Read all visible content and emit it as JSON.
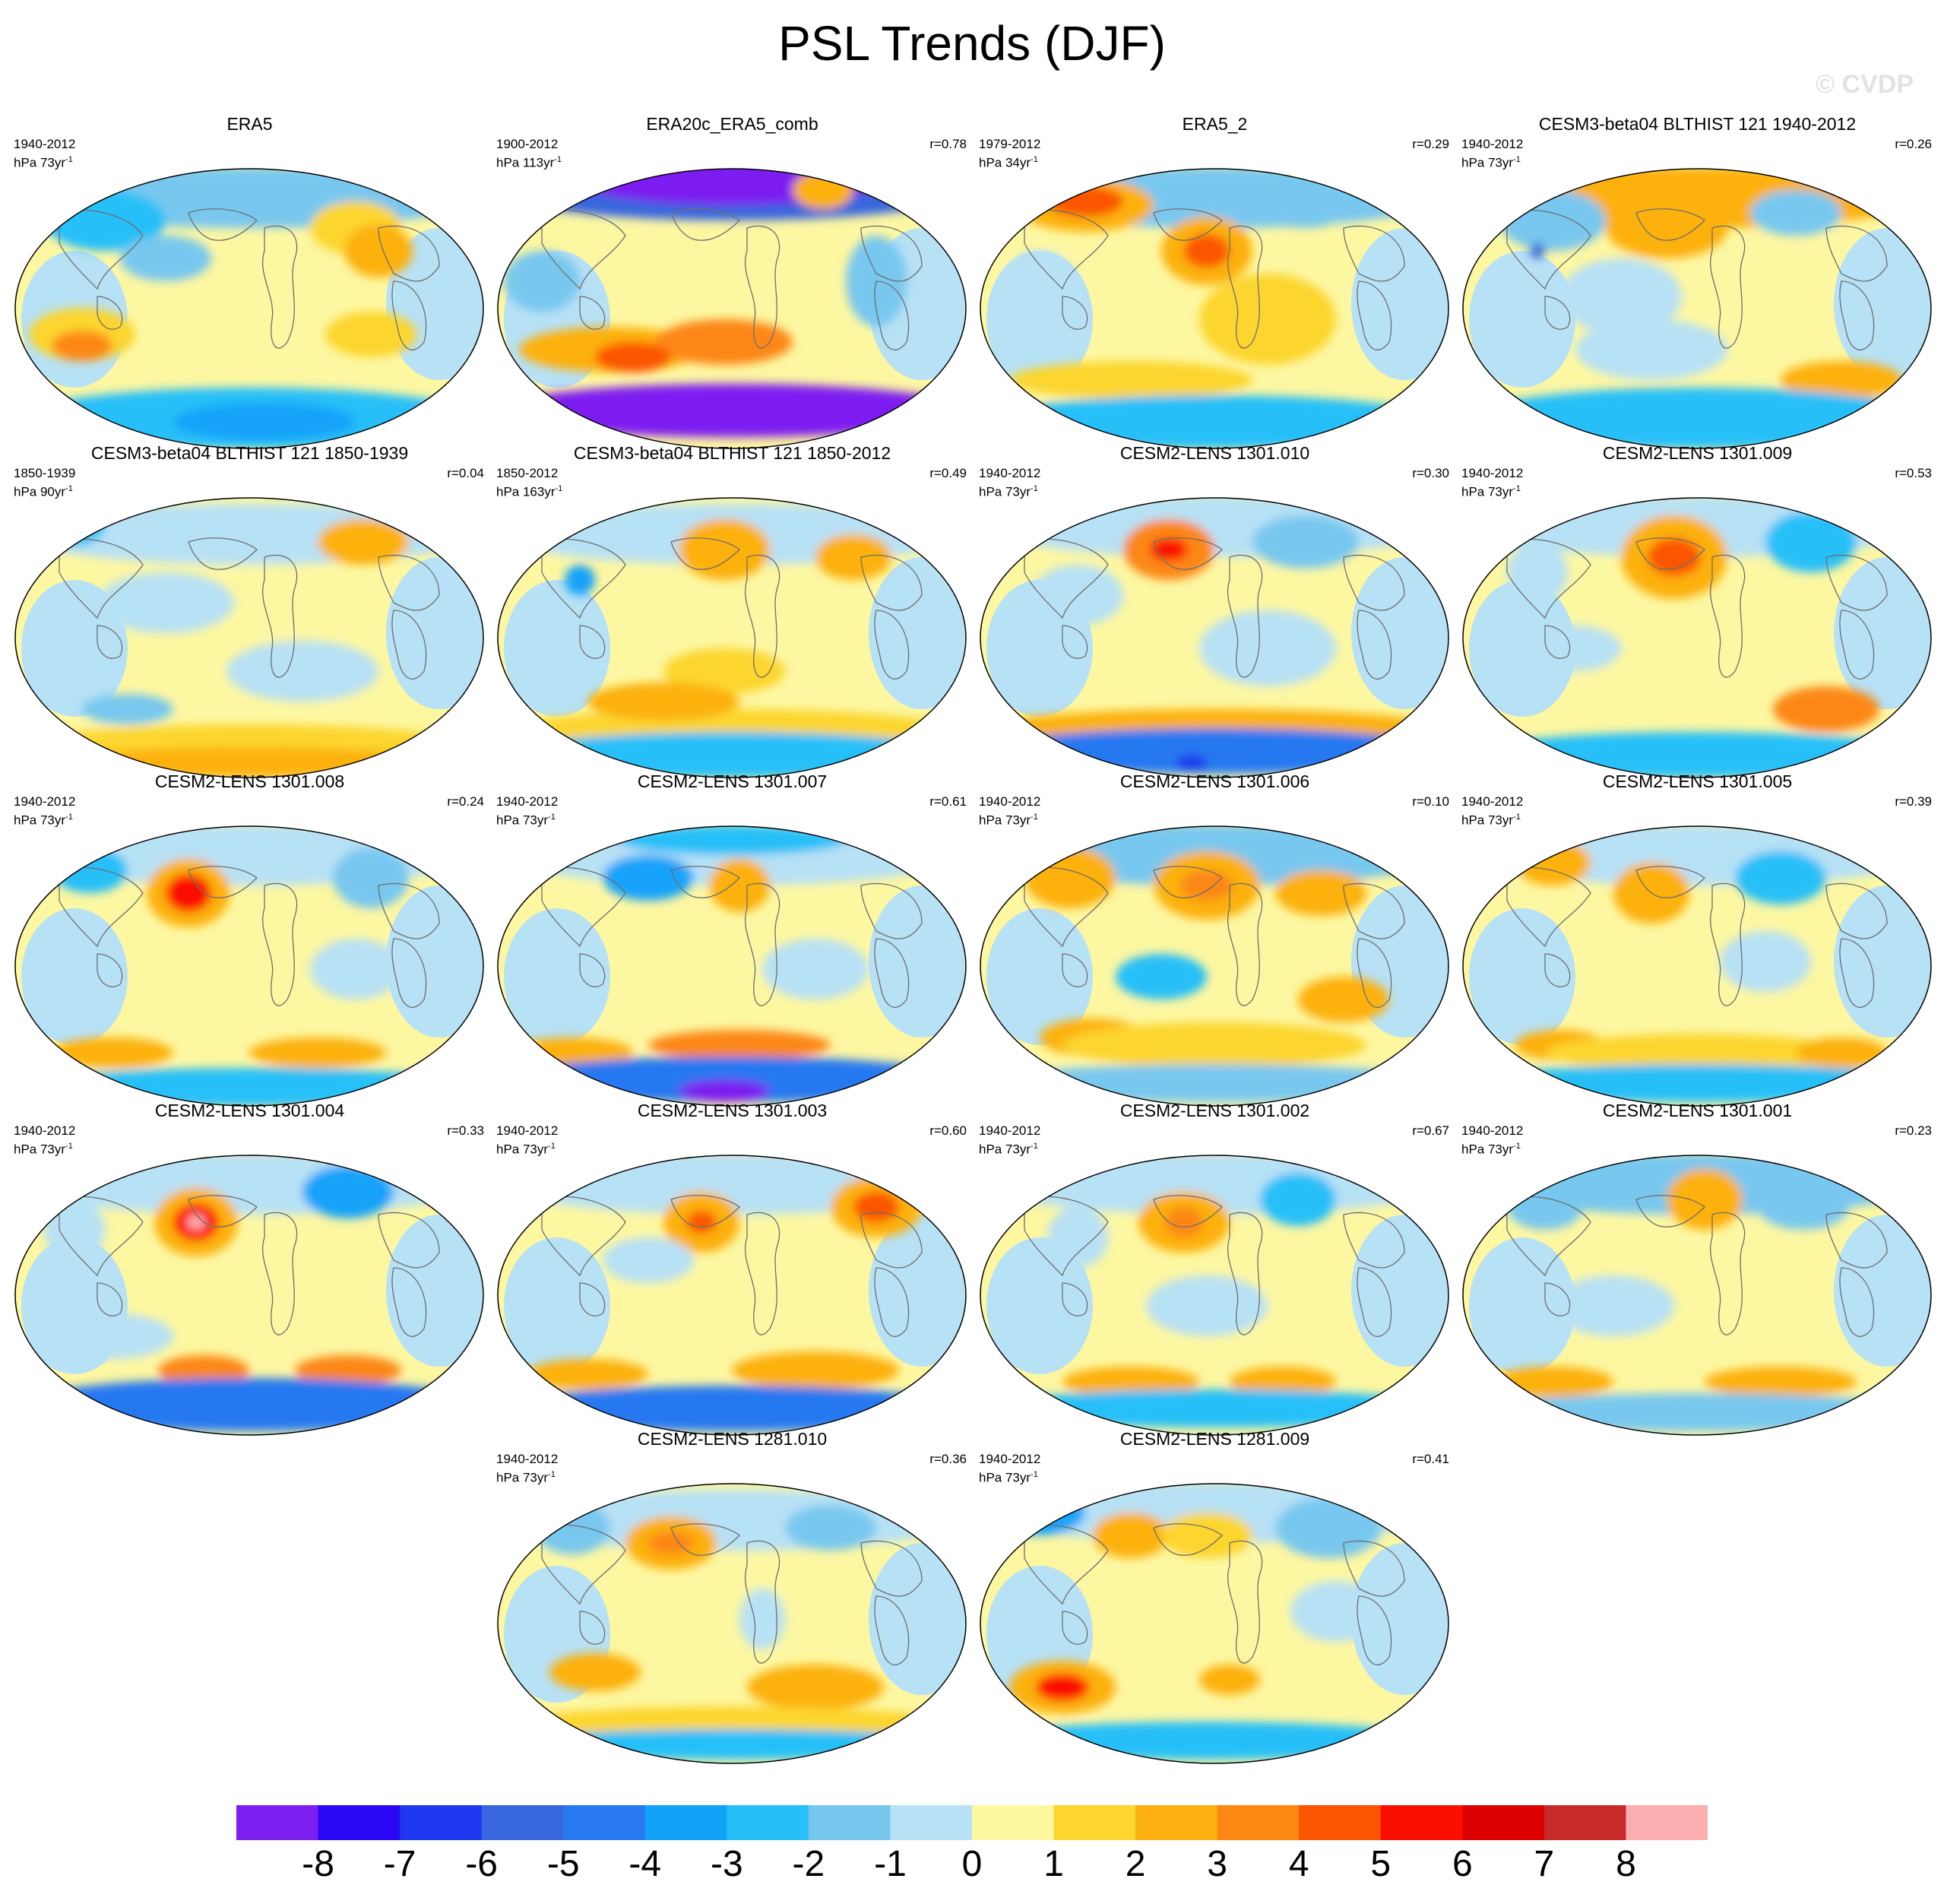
{
  "title": "PSL Trends (DJF)",
  "watermark": "© CVDP",
  "chart_data": {
    "type": "heatmap",
    "title": "PSL Trends (DJF)",
    "colorbar": {
      "labels": [
        "-8",
        "-7",
        "-6",
        "-5",
        "-4",
        "-3",
        "-2",
        "-1",
        "0",
        "1",
        "2",
        "3",
        "4",
        "5",
        "6",
        "7",
        "8"
      ],
      "colors": [
        "#7d1ff0",
        "#2a07f5",
        "#1f37ee",
        "#3866de",
        "#2778f1",
        "#12a3f9",
        "#27bff8",
        "#78c7ef",
        "#b7e1f5",
        "#fdf7a2",
        "#fcd62f",
        "#fcb111",
        "#fc8712",
        "#fb5402",
        "#fb0f01",
        "#dc0000",
        "#c82a2a",
        "#fdaeb0"
      ]
    },
    "panels": [
      {
        "title": "ERA5",
        "period": "1940-2012",
        "units": "hPa 73yr",
        "unit_exp": "-1",
        "r": ""
      },
      {
        "title": "ERA20c_ERA5_comb",
        "period": "1900-2012",
        "units": "hPa 113yr",
        "unit_exp": "-1",
        "r": "r=0.78"
      },
      {
        "title": "ERA5_2",
        "period": "1979-2012",
        "units": "hPa 34yr",
        "unit_exp": "-1",
        "r": "r=0.29"
      },
      {
        "title": "CESM3-beta04 BLTHIST 121 1940-2012",
        "period": "1940-2012",
        "units": "hPa 73yr",
        "unit_exp": "-1",
        "r": "r=0.26"
      },
      {
        "title": "CESM3-beta04 BLTHIST 121 1850-1939",
        "period": "1850-1939",
        "units": "hPa 90yr",
        "unit_exp": "-1",
        "r": "r=0.04"
      },
      {
        "title": "CESM3-beta04 BLTHIST 121 1850-2012",
        "period": "1850-2012",
        "units": "hPa 163yr",
        "unit_exp": "-1",
        "r": "r=0.49"
      },
      {
        "title": "CESM2-LENS 1301.010",
        "period": "1940-2012",
        "units": "hPa 73yr",
        "unit_exp": "-1",
        "r": "r=0.30"
      },
      {
        "title": "CESM2-LENS 1301.009",
        "period": "1940-2012",
        "units": "hPa 73yr",
        "unit_exp": "-1",
        "r": "r=0.53"
      },
      {
        "title": "CESM2-LENS 1301.008",
        "period": "1940-2012",
        "units": "hPa 73yr",
        "unit_exp": "-1",
        "r": "r=0.24"
      },
      {
        "title": "CESM2-LENS 1301.007",
        "period": "1940-2012",
        "units": "hPa 73yr",
        "unit_exp": "-1",
        "r": "r=0.61"
      },
      {
        "title": "CESM2-LENS 1301.006",
        "period": "1940-2012",
        "units": "hPa 73yr",
        "unit_exp": "-1",
        "r": "r=0.10"
      },
      {
        "title": "CESM2-LENS 1301.005",
        "period": "1940-2012",
        "units": "hPa 73yr",
        "unit_exp": "-1",
        "r": "r=0.39"
      },
      {
        "title": "CESM2-LENS 1301.004",
        "period": "1940-2012",
        "units": "hPa 73yr",
        "unit_exp": "-1",
        "r": "r=0.33"
      },
      {
        "title": "CESM2-LENS 1301.003",
        "period": "1940-2012",
        "units": "hPa 73yr",
        "unit_exp": "-1",
        "r": "r=0.60"
      },
      {
        "title": "CESM2-LENS 1301.002",
        "period": "1940-2012",
        "units": "hPa 73yr",
        "unit_exp": "-1",
        "r": "r=0.67"
      },
      {
        "title": "CESM2-LENS 1301.001",
        "period": "1940-2012",
        "units": "hPa 73yr",
        "unit_exp": "-1",
        "r": "r=0.23"
      },
      {
        "title": "CESM2-LENS 1281.010",
        "period": "1940-2012",
        "units": "hPa 73yr",
        "unit_exp": "-1",
        "r": "r=0.36"
      },
      {
        "title": "CESM2-LENS 1281.009",
        "period": "1940-2012",
        "units": "hPa 73yr",
        "unit_exp": "-1",
        "r": "r=0.41"
      }
    ]
  }
}
